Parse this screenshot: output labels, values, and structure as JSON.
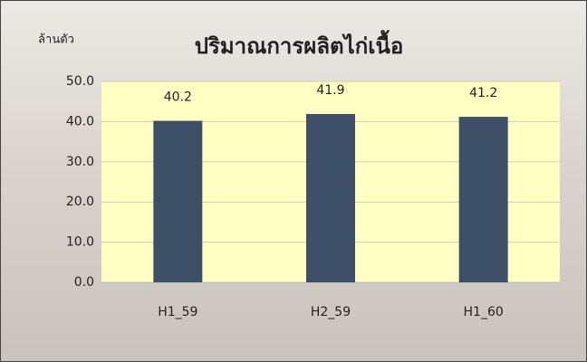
{
  "chart_data": {
    "type": "bar",
    "title": "ปริมาณการผลิตไก่เนื้อ",
    "y_label": "ล้านตัว",
    "categories": [
      "H1_59",
      "H2_59",
      "H1_60"
    ],
    "values": [
      40.2,
      41.9,
      41.2
    ],
    "color": "#3d5068",
    "ylim": [
      0,
      50
    ],
    "yticks": [
      {
        "value": 0,
        "label": "0.0"
      },
      {
        "value": 10,
        "label": "10.0"
      },
      {
        "value": 20,
        "label": "20.0"
      },
      {
        "value": 30,
        "label": "30.0"
      },
      {
        "value": 40,
        "label": "40.0"
      },
      {
        "value": 50,
        "label": "50.0"
      }
    ],
    "grid": true
  }
}
